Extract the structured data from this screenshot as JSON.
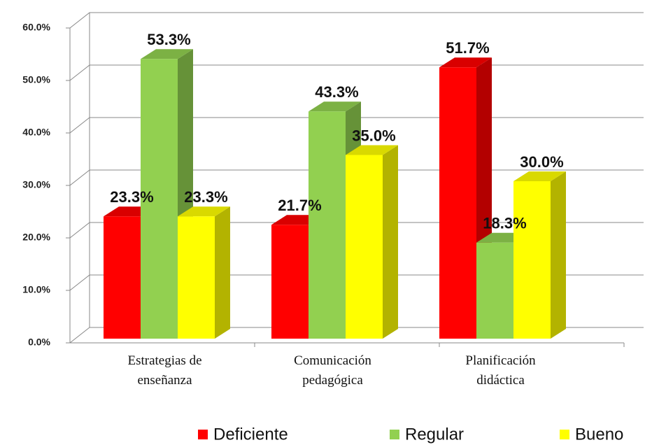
{
  "chart_data": {
    "type": "bar3d",
    "categories": [
      "Estrategias de enseñanza",
      "Comunicación pedagógica",
      "Planificación didáctica"
    ],
    "series": [
      {
        "name": "Deficiente",
        "color": "#ff0000",
        "values": [
          23.3,
          21.7,
          51.7
        ],
        "value_labels": [
          "23.3%",
          "21.7%",
          "51.7%"
        ]
      },
      {
        "name": "Regular",
        "color": "#92d050",
        "values": [
          53.3,
          43.3,
          18.3
        ],
        "value_labels": [
          "53.3%",
          "43.3%",
          "18.3%"
        ]
      },
      {
        "name": "Bueno",
        "color": "#ffff00",
        "values": [
          23.3,
          35.0,
          30.0
        ],
        "value_labels": [
          "23.3%",
          "35.0%",
          "30.0%"
        ]
      }
    ],
    "ylim": [
      0,
      60
    ],
    "yticks": [
      {
        "value": 0,
        "label": "0.0%"
      },
      {
        "value": 10,
        "label": "10.0%"
      },
      {
        "value": 20,
        "label": "20.0%"
      },
      {
        "value": 30,
        "label": "30.0%"
      },
      {
        "value": 40,
        "label": "40.0%"
      },
      {
        "value": 50,
        "label": "50.0%"
      },
      {
        "value": 60,
        "label": "60.0%"
      }
    ],
    "grid": true,
    "legend": "bottom"
  }
}
